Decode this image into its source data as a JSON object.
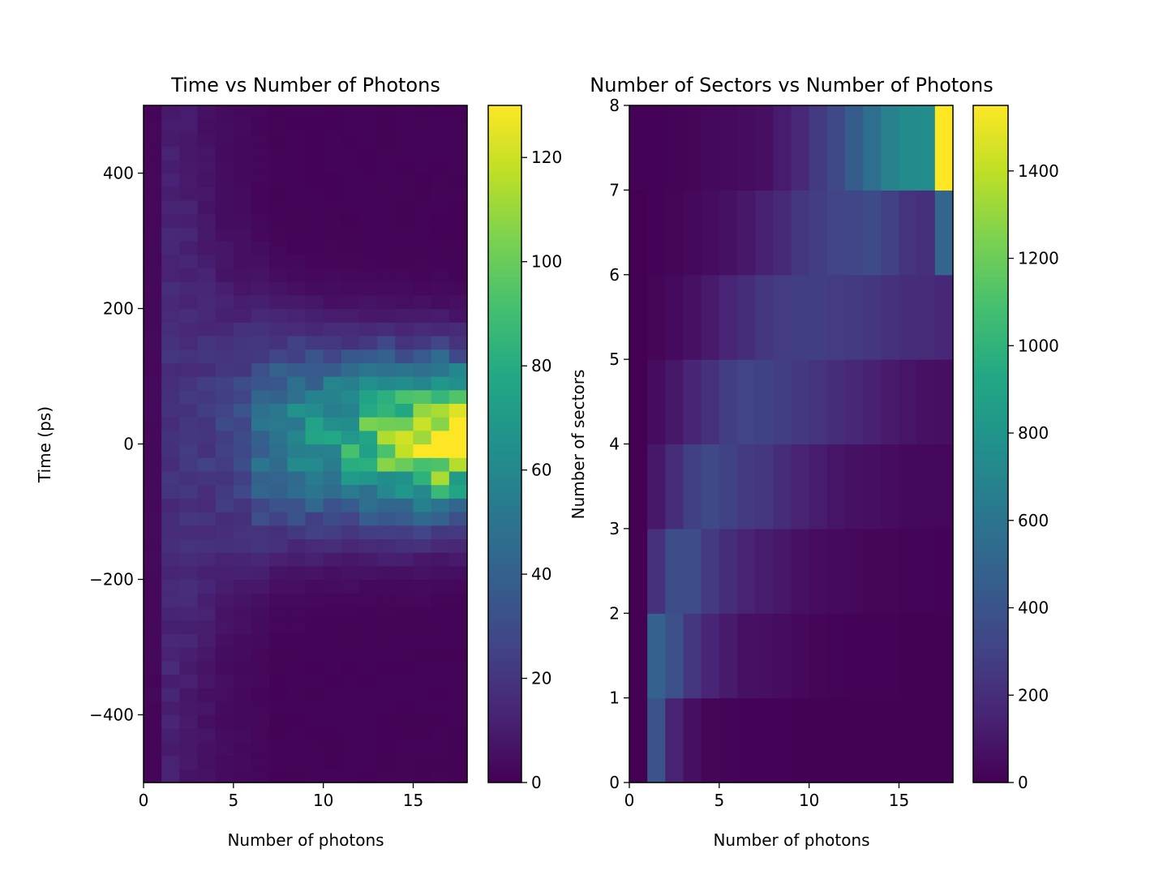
{
  "chart_data": [
    {
      "type": "heatmap",
      "title": "Time vs Number of Photons",
      "xlabel": "Number of photons",
      "ylabel": "Time (ps)",
      "xlim": [
        0,
        18
      ],
      "ylim": [
        -500,
        500
      ],
      "xticks": [
        0,
        5,
        10,
        15
      ],
      "xtick_labels": [
        "0",
        "5",
        "10",
        "15"
      ],
      "yticks": [
        -400,
        -200,
        0,
        200,
        400
      ],
      "ytick_labels": [
        "−400",
        "−200",
        "0",
        "200",
        "400"
      ],
      "x_bin_width": 1,
      "y_bins": 50,
      "colormap": "viridis",
      "colorbar": {
        "vmin": 0,
        "vmax": 130,
        "ticks": [
          0,
          20,
          40,
          60,
          80,
          100,
          120
        ],
        "tick_labels": [
          "0",
          "20",
          "40",
          "60",
          "80",
          "100",
          "120"
        ]
      },
      "profile": {
        "center_ps": 10,
        "column_peak_counts": [
          1,
          8,
          12,
          16,
          22,
          30,
          45,
          55,
          62,
          68,
          72,
          78,
          88,
          100,
          105,
          118,
          130,
          118
        ],
        "column_width_ps": [
          260,
          240,
          200,
          160,
          135,
          120,
          110,
          100,
          95,
          90,
          88,
          86,
          84,
          82,
          80,
          78,
          76,
          76
        ],
        "column_background": [
          2,
          10,
          8,
          6,
          4,
          3,
          2,
          1,
          1,
          1,
          1,
          1,
          1,
          1,
          1,
          1,
          1,
          1
        ]
      }
    },
    {
      "type": "heatmap",
      "title": "Number of Sectors vs Number of Photons",
      "xlabel": "Number of photons",
      "ylabel": "Number of sectors",
      "xlim": [
        0,
        18
      ],
      "ylim": [
        0,
        8
      ],
      "xticks": [
        0,
        5,
        10,
        15
      ],
      "xtick_labels": [
        "0",
        "5",
        "10",
        "15"
      ],
      "yticks": [
        0,
        1,
        2,
        3,
        4,
        5,
        6,
        7,
        8
      ],
      "ytick_labels": [
        "0",
        "1",
        "2",
        "3",
        "4",
        "5",
        "6",
        "7",
        "8"
      ],
      "colormap": "viridis",
      "colorbar": {
        "vmin": 0,
        "vmax": 1550,
        "ticks": [
          0,
          200,
          400,
          600,
          800,
          1000,
          1200,
          1400
        ],
        "tick_labels": [
          "0",
          "200",
          "400",
          "600",
          "800",
          "1000",
          "1200",
          "1400"
        ]
      },
      "counts_by_sector_row": [
        [
          0,
          400,
          150,
          60,
          20,
          15,
          10,
          10,
          10,
          5,
          5,
          5,
          5,
          5,
          5,
          5,
          5,
          5
        ],
        [
          0,
          480,
          380,
          240,
          160,
          110,
          70,
          60,
          50,
          30,
          20,
          15,
          10,
          10,
          10,
          5,
          5,
          5
        ],
        [
          0,
          220,
          360,
          360,
          260,
          200,
          150,
          120,
          100,
          70,
          50,
          40,
          30,
          20,
          20,
          15,
          15,
          10
        ],
        [
          0,
          100,
          200,
          290,
          340,
          300,
          260,
          240,
          200,
          150,
          120,
          90,
          70,
          60,
          50,
          35,
          30,
          25
        ],
        [
          0,
          50,
          100,
          160,
          220,
          280,
          310,
          300,
          280,
          250,
          230,
          200,
          170,
          140,
          110,
          90,
          70,
          60
        ],
        [
          0,
          20,
          40,
          70,
          110,
          160,
          200,
          240,
          270,
          280,
          280,
          270,
          260,
          240,
          220,
          200,
          190,
          170
        ],
        [
          0,
          10,
          20,
          30,
          50,
          70,
          100,
          140,
          180,
          240,
          280,
          310,
          330,
          350,
          300,
          230,
          210,
          500
        ],
        [
          10,
          10,
          15,
          20,
          30,
          40,
          50,
          60,
          120,
          180,
          260,
          340,
          450,
          560,
          680,
          740,
          750,
          1550
        ]
      ]
    }
  ]
}
